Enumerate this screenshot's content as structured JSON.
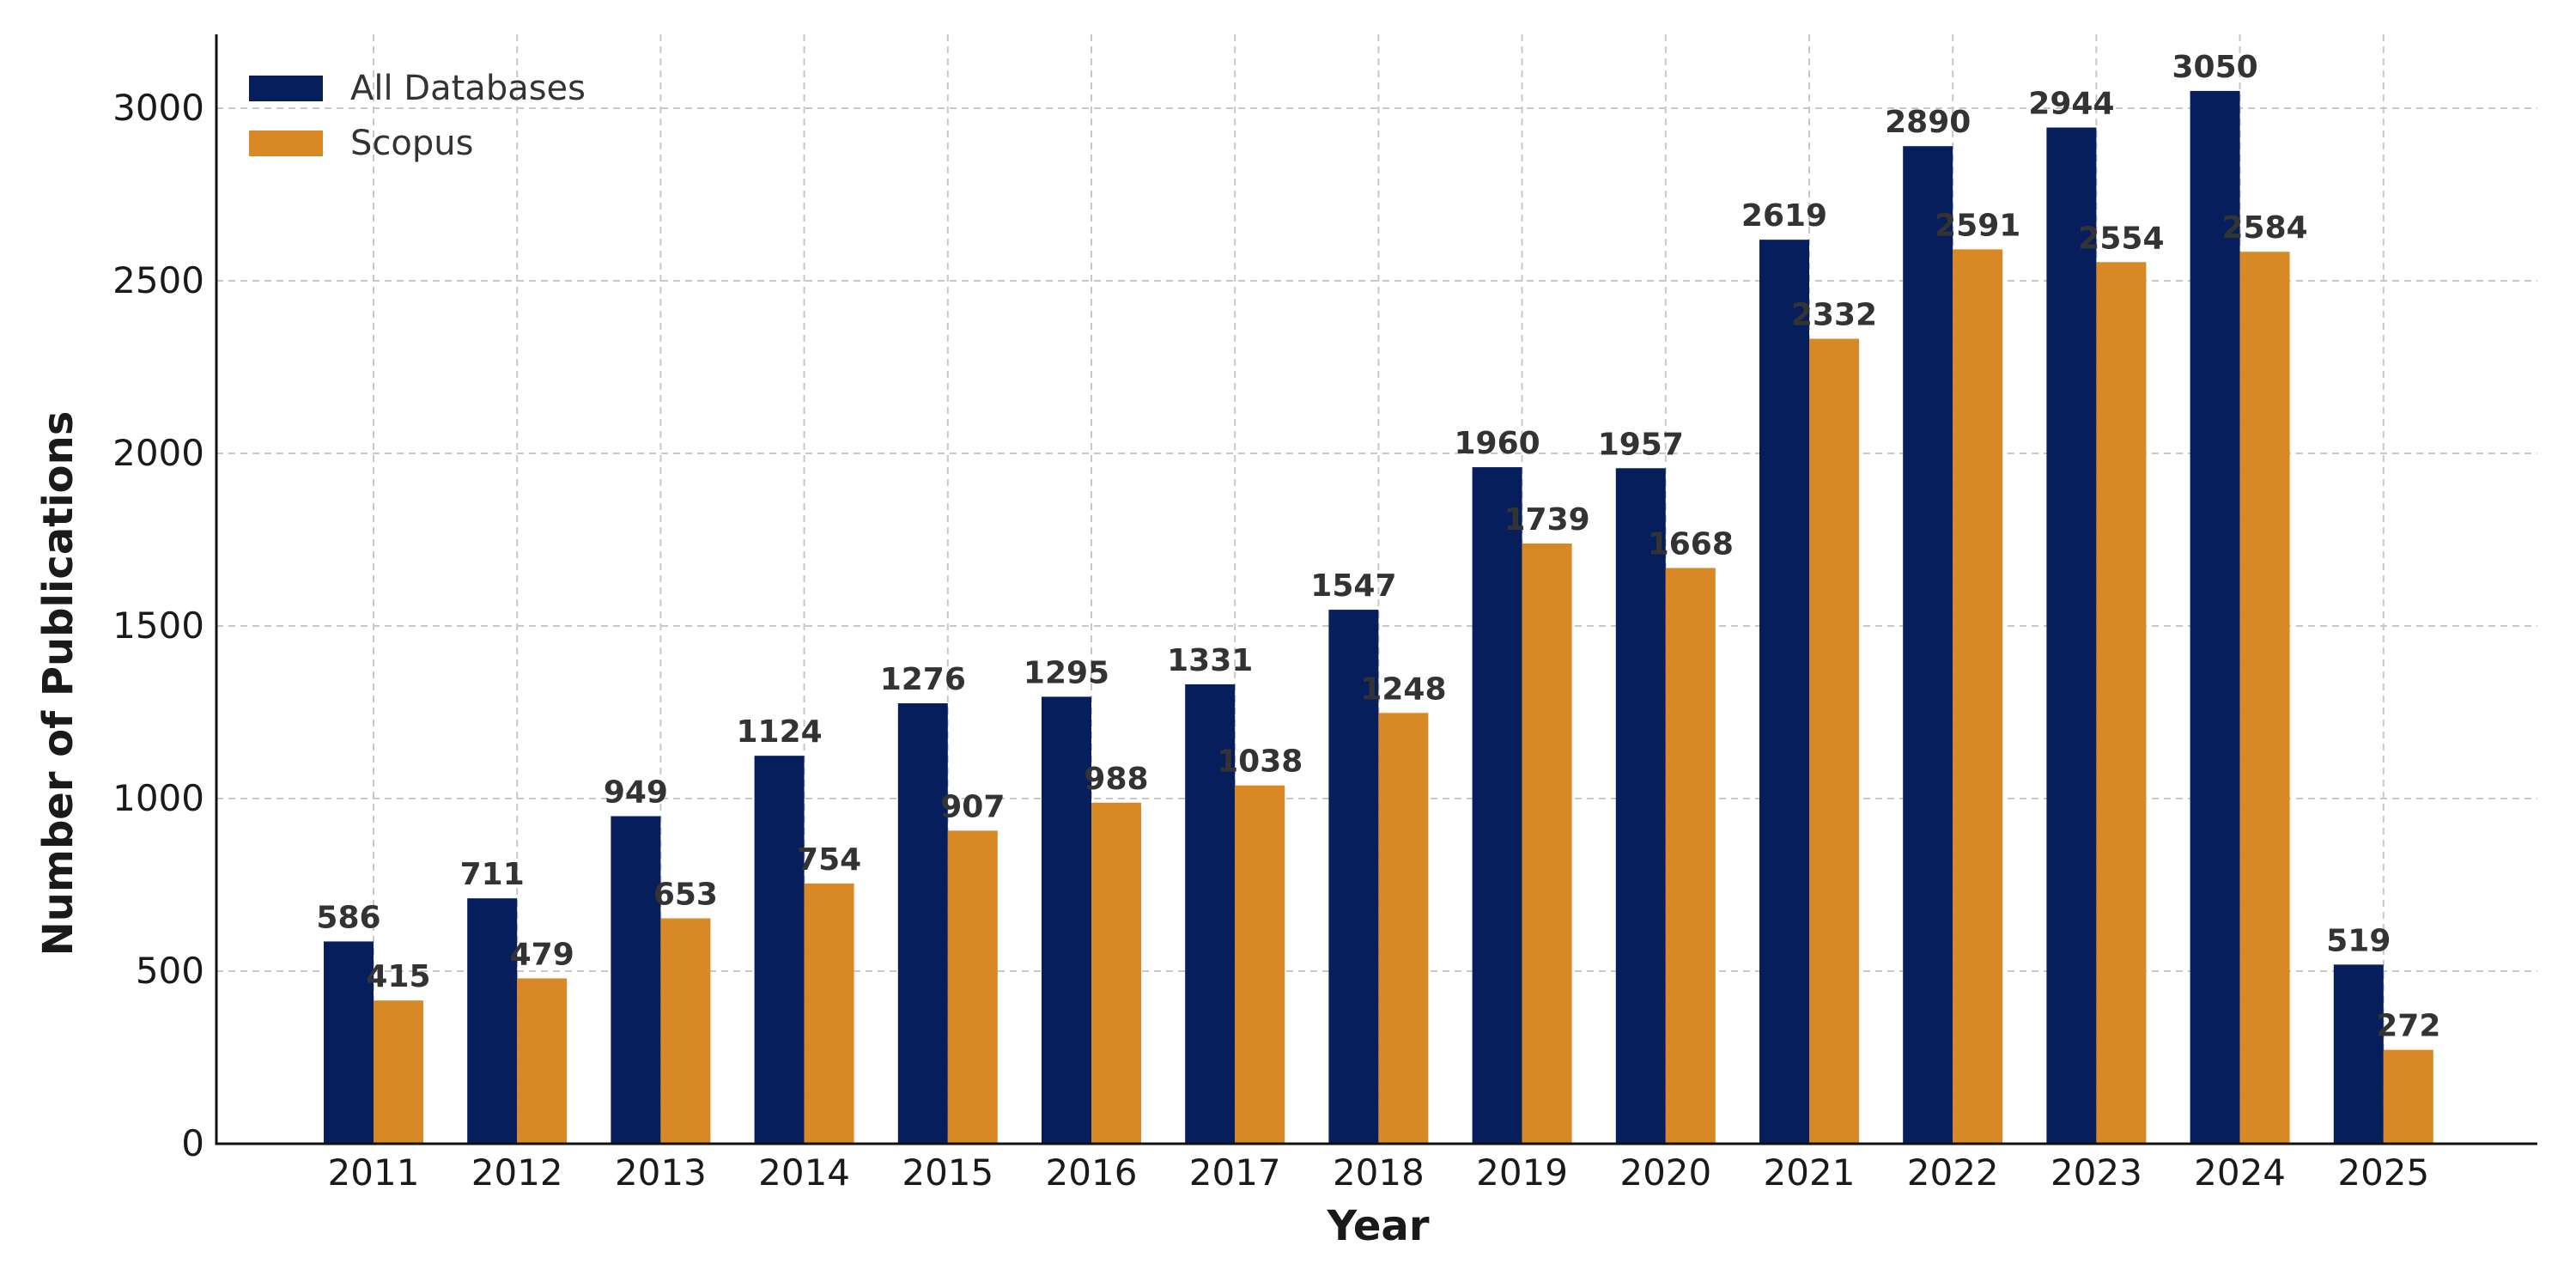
{
  "chart_data": {
    "type": "bar",
    "xlabel": "Year",
    "ylabel": "Number of Publications",
    "ylim": [
      0,
      3200
    ],
    "yticks": [
      0,
      500,
      1000,
      1500,
      2000,
      2500,
      3000
    ],
    "grid": true,
    "legend_position": "top-left",
    "categories": [
      "2011",
      "2012",
      "2013",
      "2014",
      "2015",
      "2016",
      "2017",
      "2018",
      "2019",
      "2020",
      "2021",
      "2022",
      "2023",
      "2024",
      "2025"
    ],
    "series": [
      {
        "name": "All Databases",
        "color": "#061f5c",
        "values": [
          586,
          711,
          949,
          1124,
          1276,
          1295,
          1331,
          1547,
          1960,
          1957,
          2619,
          2890,
          2944,
          3050,
          519
        ]
      },
      {
        "name": "Scopus",
        "color": "#d98826",
        "values": [
          415,
          479,
          653,
          754,
          907,
          988,
          1038,
          1248,
          1739,
          1668,
          2332,
          2591,
          2554,
          2584,
          272
        ]
      }
    ]
  }
}
